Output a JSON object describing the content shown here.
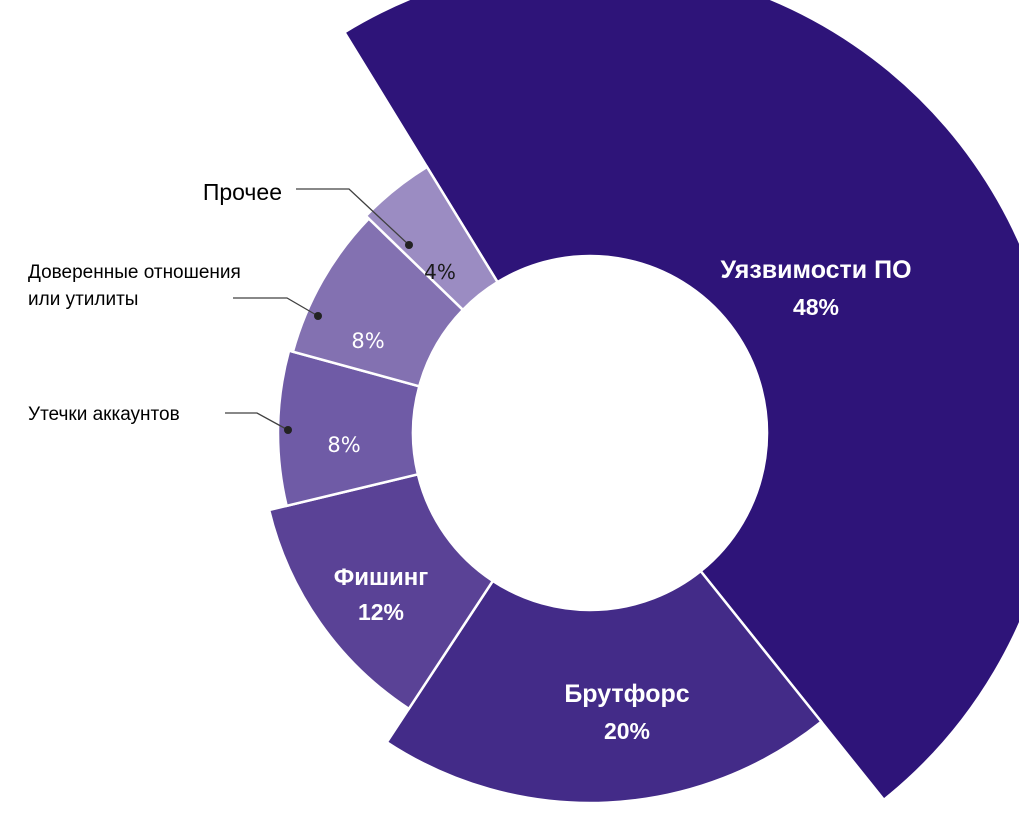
{
  "chart_data": {
    "type": "pie",
    "variant": "donut-exploded-radii",
    "title": "",
    "series": [
      {
        "name": "Уязвимости ПО",
        "value": 48,
        "label": "48%",
        "color": "#2e1479"
      },
      {
        "name": "Брутфорс",
        "value": 20,
        "label": "20%",
        "color": "#432b88"
      },
      {
        "name": "Фишинг",
        "value": 12,
        "label": "12%",
        "color": "#5a4296"
      },
      {
        "name": "Утечки аккаунтов",
        "value": 8,
        "label": "8%",
        "color": "#6f5ba6"
      },
      {
        "name": "Доверенные отношения или утилиты",
        "value": 8,
        "label": "8%",
        "color": "#8371b1"
      },
      {
        "name": "Прочее",
        "value": 4,
        "label": "4%",
        "color": "#9b8cc2"
      }
    ],
    "legend": "none",
    "grid": false
  },
  "labels": {
    "vuln": "Уязвимости ПО",
    "brute": "Брутфорс",
    "phish": "Фишинг",
    "leaks": "Утечки аккаунтов",
    "trusted_line1": "Доверенные отношения",
    "trusted_line2": "или утилиты",
    "other": "Прочее"
  }
}
